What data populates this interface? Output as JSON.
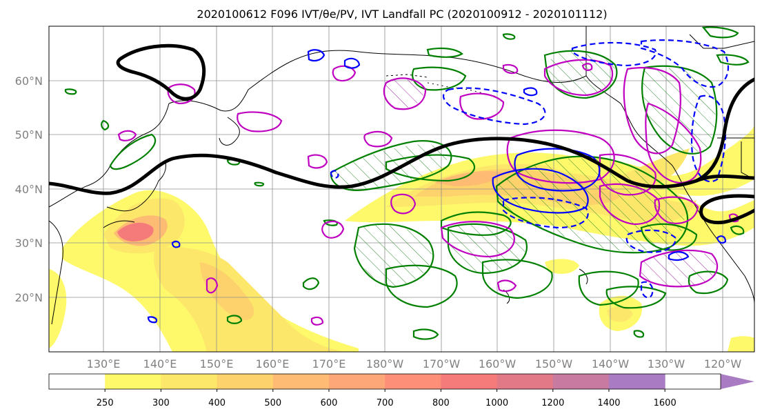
{
  "title": "2020100612 F096 IVT/θe/PV, IVT Landfall PC (2020100912 - 2020101112)",
  "map": {
    "lat_labels": [
      "60°N",
      "50°N",
      "40°N",
      "30°N",
      "20°N"
    ],
    "lon_labels": [
      "130°E",
      "140°E",
      "150°E",
      "160°E",
      "170°E",
      "180°W",
      "170°W",
      "160°W",
      "150°W",
      "140°W",
      "130°W",
      "120°W"
    ],
    "contour_colors": {
      "positive_ivt": "#008000",
      "cyclonic_pv": "#c000c0",
      "theta_negative": "#0000ff",
      "reference_line": "#000000"
    }
  },
  "colorbar": {
    "levels": [
      "250",
      "300",
      "400",
      "500",
      "600",
      "700",
      "800",
      "1000",
      "1200",
      "1400",
      "1600"
    ],
    "colors": [
      "#ffffff",
      "#fdf96b",
      "#fde76b",
      "#fdd16b",
      "#fdbb74",
      "#fda779",
      "#fd8f78",
      "#f57b7b",
      "#e27987",
      "#c97aa1",
      "#a97bc3"
    ]
  }
}
